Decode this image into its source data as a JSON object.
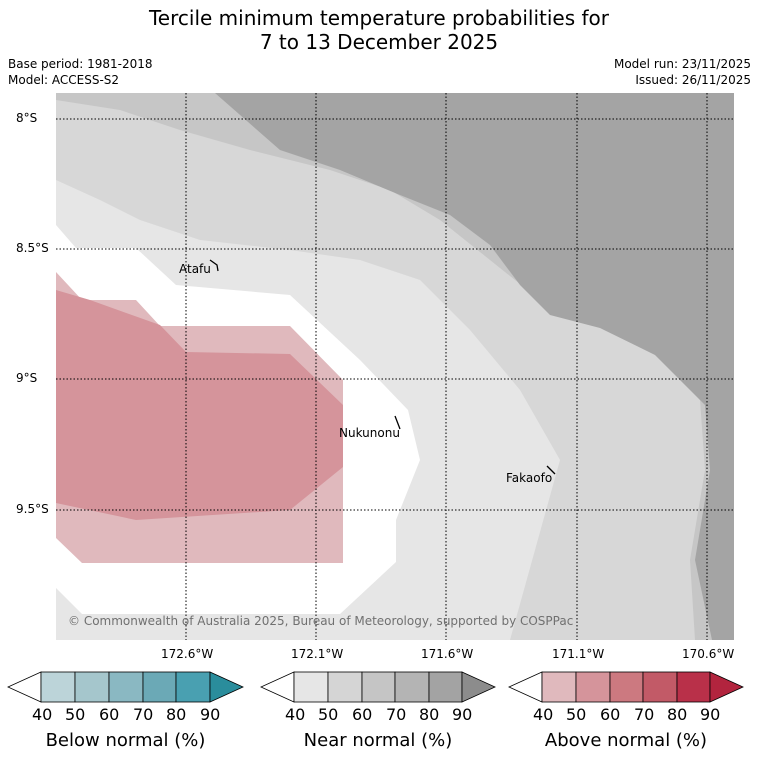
{
  "title_line1": "Tercile minimum temperature probabilities for",
  "title_line2": "7 to 13 December 2025",
  "base_period": "Base period: 1981-2018",
  "model": "Model: ACCESS-S2",
  "model_run": "Model run: 23/11/2025",
  "issued": "Issued: 26/11/2025",
  "lat_labels": [
    "8°S",
    "8.5°S",
    "9°S",
    "9.5°S"
  ],
  "lon_labels": [
    "172.6°W",
    "172.1°W",
    "171.6°W",
    "171.1°W",
    "170.6°W"
  ],
  "islands": [
    "Atafu",
    "Nukunonu",
    "Fakaofo"
  ],
  "copyright": "© Commonwealth of Australia 2025, Bureau of Meteorology, supported by COSPPac",
  "colorbars": [
    {
      "label": "Below normal (%)",
      "ticks": [
        "40",
        "50",
        "60",
        "70",
        "80",
        "90"
      ],
      "colors": [
        "#bcd4d9",
        "#a5c6cc",
        "#8ab8c2",
        "#6ba9b6",
        "#49a0b1",
        "#2a8d9c"
      ]
    },
    {
      "label": "Near normal (%)",
      "ticks": [
        "40",
        "50",
        "60",
        "70",
        "80",
        "90"
      ],
      "colors": [
        "#e6e6e6",
        "#d5d5d5",
        "#c5c5c5",
        "#b4b4b4",
        "#a3a3a3",
        "#8c8c8c"
      ]
    },
    {
      "label": "Above normal (%)",
      "ticks": [
        "40",
        "50",
        "60",
        "70",
        "80",
        "90"
      ],
      "colors": [
        "#e0b9bd",
        "#d5949b",
        "#cc7980",
        "#c25a67",
        "#b93049",
        "#b2243e"
      ]
    }
  ]
}
